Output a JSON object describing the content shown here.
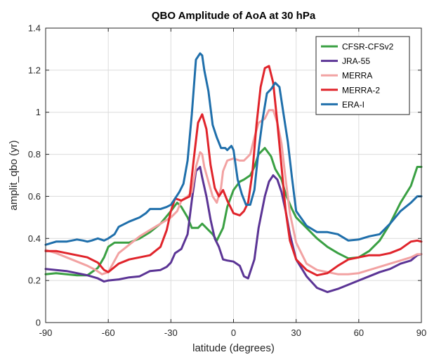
{
  "chart_data": {
    "type": "line",
    "title": "QBO Amplitude of AoA at 30 hPa",
    "xlabel": "latitude (degrees)",
    "ylabel": "amplit_qbo (yr)",
    "xlim": [
      -90,
      90
    ],
    "ylim": [
      0,
      1.4
    ],
    "xticks": [
      -90,
      -60,
      -30,
      0,
      30,
      60,
      90
    ],
    "yticks": [
      0,
      0.2,
      0.4,
      0.6,
      0.8,
      1,
      1.2,
      1.4
    ],
    "ytick_labels": [
      "0",
      "0.2",
      "0.4",
      "0.6",
      "0.8",
      "1",
      "1.2",
      "1.4"
    ],
    "grid": true,
    "legend_position": "top-right",
    "series": [
      {
        "name": "CFSR-CFSv2",
        "color": "#3aa043",
        "x": [
          -90,
          -85,
          -80,
          -75,
          -70,
          -65,
          -62,
          -60,
          -57,
          -55,
          -50,
          -45,
          -40,
          -35,
          -30,
          -27,
          -25,
          -22,
          -20,
          -17,
          -15,
          -12,
          -10,
          -8,
          -5,
          -3,
          0,
          3,
          5,
          8,
          10,
          12,
          15,
          18,
          20,
          23,
          25,
          28,
          30,
          35,
          40,
          45,
          50,
          55,
          60,
          65,
          70,
          75,
          80,
          85,
          88,
          90
        ],
        "y": [
          0.23,
          0.235,
          0.23,
          0.225,
          0.225,
          0.26,
          0.31,
          0.36,
          0.38,
          0.38,
          0.38,
          0.4,
          0.43,
          0.47,
          0.53,
          0.57,
          0.55,
          0.5,
          0.45,
          0.45,
          0.47,
          0.44,
          0.42,
          0.39,
          0.45,
          0.55,
          0.63,
          0.67,
          0.68,
          0.7,
          0.74,
          0.8,
          0.83,
          0.79,
          0.73,
          0.68,
          0.61,
          0.54,
          0.5,
          0.45,
          0.4,
          0.36,
          0.33,
          0.305,
          0.31,
          0.34,
          0.39,
          0.47,
          0.57,
          0.65,
          0.74,
          0.74
        ]
      },
      {
        "name": "JRA-55",
        "color": "#5b3495",
        "x": [
          -90,
          -85,
          -80,
          -75,
          -70,
          -65,
          -62,
          -60,
          -55,
          -50,
          -45,
          -40,
          -35,
          -32,
          -30,
          -28,
          -25,
          -22,
          -20,
          -18,
          -16,
          -15,
          -13,
          -11,
          -9,
          -7,
          -5,
          -3,
          0,
          3,
          5,
          7,
          10,
          12,
          15,
          17,
          19,
          21,
          23,
          25,
          27,
          30,
          35,
          40,
          45,
          50,
          55,
          60,
          65,
          70,
          75,
          80,
          85,
          88,
          90
        ],
        "y": [
          0.255,
          0.25,
          0.245,
          0.235,
          0.225,
          0.21,
          0.195,
          0.2,
          0.205,
          0.215,
          0.22,
          0.245,
          0.25,
          0.265,
          0.285,
          0.33,
          0.35,
          0.42,
          0.58,
          0.72,
          0.74,
          0.69,
          0.6,
          0.49,
          0.4,
          0.36,
          0.3,
          0.295,
          0.29,
          0.27,
          0.22,
          0.21,
          0.3,
          0.45,
          0.6,
          0.67,
          0.7,
          0.68,
          0.62,
          0.53,
          0.42,
          0.3,
          0.22,
          0.165,
          0.145,
          0.16,
          0.18,
          0.2,
          0.22,
          0.24,
          0.255,
          0.28,
          0.295,
          0.32,
          0.325
        ]
      },
      {
        "name": "MERRA",
        "color": "#f2a2a2",
        "x": [
          -90,
          -85,
          -80,
          -75,
          -70,
          -66,
          -63,
          -60,
          -55,
          -50,
          -45,
          -40,
          -35,
          -30,
          -27,
          -25,
          -22,
          -20,
          -18,
          -16,
          -15,
          -14,
          -12,
          -10,
          -8,
          -6,
          -5,
          -3,
          0,
          3,
          5,
          8,
          10,
          12,
          15,
          17,
          19,
          21,
          23,
          25,
          27,
          30,
          35,
          40,
          45,
          50,
          55,
          60,
          65,
          70,
          75,
          80,
          85,
          88,
          90
        ],
        "y": [
          0.345,
          0.33,
          0.31,
          0.29,
          0.27,
          0.25,
          0.23,
          0.24,
          0.33,
          0.37,
          0.41,
          0.44,
          0.47,
          0.5,
          0.53,
          0.58,
          0.6,
          0.62,
          0.74,
          0.81,
          0.8,
          0.74,
          0.67,
          0.6,
          0.57,
          0.64,
          0.72,
          0.77,
          0.78,
          0.77,
          0.77,
          0.8,
          0.88,
          0.95,
          0.97,
          1.01,
          1.01,
          0.95,
          0.85,
          0.68,
          0.52,
          0.38,
          0.28,
          0.25,
          0.24,
          0.23,
          0.23,
          0.235,
          0.25,
          0.265,
          0.28,
          0.295,
          0.31,
          0.325,
          0.325
        ]
      },
      {
        "name": "MERRA-2",
        "color": "#e0242b",
        "x": [
          -90,
          -85,
          -80,
          -75,
          -70,
          -65,
          -62,
          -60,
          -55,
          -50,
          -45,
          -40,
          -35,
          -32,
          -30,
          -28,
          -25,
          -23,
          -21,
          -19,
          -17,
          -15,
          -13,
          -11,
          -9,
          -7,
          -5,
          -3,
          0,
          3,
          5,
          7,
          9,
          11,
          13,
          15,
          17,
          19,
          21,
          23,
          25,
          27,
          30,
          35,
          40,
          45,
          50,
          55,
          60,
          65,
          70,
          75,
          80,
          85,
          88,
          90
        ],
        "y": [
          0.34,
          0.34,
          0.33,
          0.32,
          0.31,
          0.285,
          0.25,
          0.24,
          0.28,
          0.3,
          0.31,
          0.32,
          0.36,
          0.44,
          0.53,
          0.59,
          0.58,
          0.59,
          0.6,
          0.78,
          0.95,
          0.99,
          0.92,
          0.75,
          0.64,
          0.6,
          0.63,
          0.58,
          0.52,
          0.51,
          0.53,
          0.57,
          0.71,
          0.94,
          1.12,
          1.21,
          1.22,
          1.14,
          0.95,
          0.74,
          0.53,
          0.39,
          0.3,
          0.25,
          0.225,
          0.235,
          0.27,
          0.3,
          0.31,
          0.32,
          0.32,
          0.33,
          0.35,
          0.385,
          0.39,
          0.385
        ]
      },
      {
        "name": "ERA-I",
        "color": "#1f6fab",
        "x": [
          -90,
          -85,
          -80,
          -75,
          -72,
          -70,
          -68,
          -65,
          -62,
          -60,
          -57,
          -55,
          -50,
          -45,
          -42,
          -40,
          -35,
          -32,
          -30,
          -28,
          -26,
          -24,
          -22,
          -20,
          -18,
          -16,
          -15,
          -14,
          -12,
          -10,
          -8,
          -6,
          -4,
          -3,
          -1,
          0,
          2,
          4,
          6,
          8,
          10,
          12,
          14,
          16,
          18,
          20,
          22,
          24,
          26,
          28,
          30,
          35,
          40,
          45,
          50,
          55,
          60,
          65,
          70,
          75,
          80,
          85,
          88,
          90
        ],
        "y": [
          0.37,
          0.385,
          0.385,
          0.395,
          0.39,
          0.385,
          0.39,
          0.4,
          0.39,
          0.4,
          0.42,
          0.455,
          0.48,
          0.5,
          0.52,
          0.54,
          0.54,
          0.55,
          0.56,
          0.59,
          0.62,
          0.66,
          0.77,
          0.99,
          1.25,
          1.28,
          1.27,
          1.2,
          1.1,
          0.94,
          0.88,
          0.83,
          0.83,
          0.82,
          0.84,
          0.82,
          0.68,
          0.61,
          0.56,
          0.56,
          0.63,
          0.82,
          0.97,
          1.09,
          1.11,
          1.14,
          1.12,
          0.99,
          0.86,
          0.69,
          0.53,
          0.46,
          0.43,
          0.43,
          0.42,
          0.39,
          0.395,
          0.41,
          0.42,
          0.47,
          0.53,
          0.57,
          0.6,
          0.6
        ]
      }
    ]
  }
}
